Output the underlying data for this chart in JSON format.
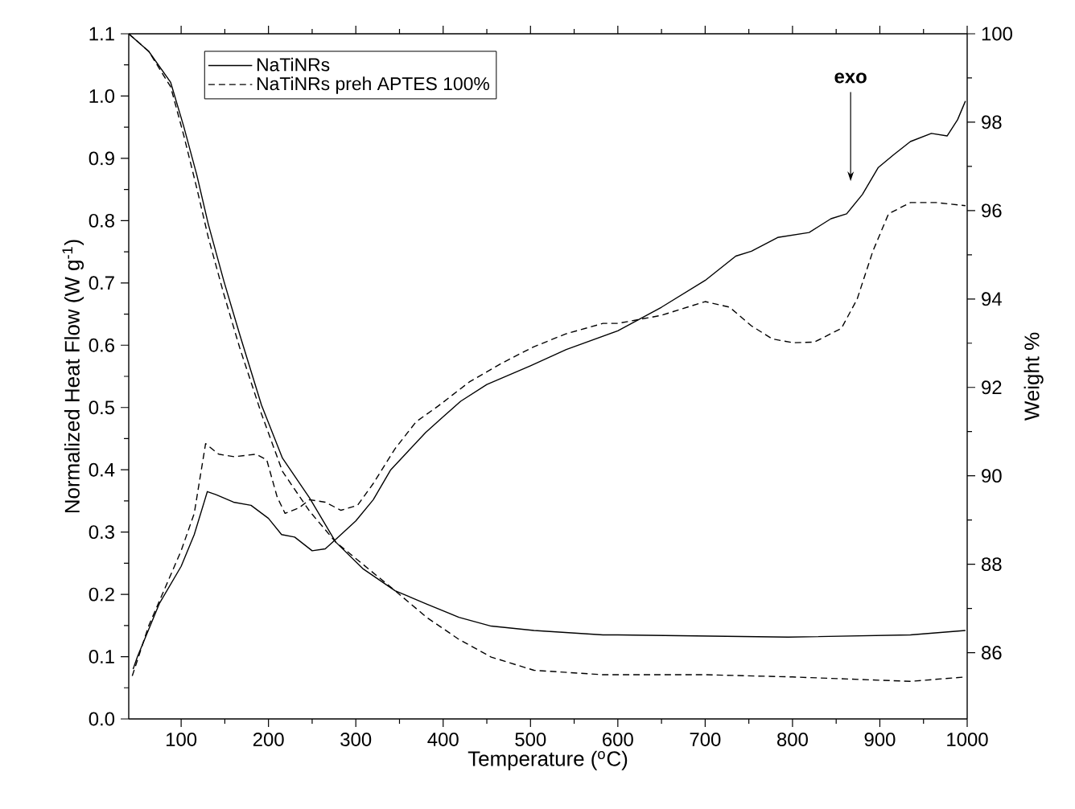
{
  "chart_data": {
    "type": "line",
    "xlabel": "Temperature ($^{o}$C)",
    "ylabel": "Normalized Heat Flow (W g$^{-1}$)",
    "y2label": "Weight %",
    "xlim": [
      40,
      1000
    ],
    "xticks": [
      100,
      200,
      300,
      400,
      500,
      600,
      700,
      800,
      900,
      1000
    ],
    "ylim": [
      0,
      1.1
    ],
    "yticks": [
      {
        "value": 0,
        "label": "0.0"
      },
      {
        "value": 0.1,
        "label": "0.1"
      },
      {
        "value": 0.2,
        "label": "0.2"
      },
      {
        "value": 0.3,
        "label": "0.3"
      },
      {
        "value": 0.4,
        "label": "0.4"
      },
      {
        "value": 0.5,
        "label": "0.5"
      },
      {
        "value": 0.6,
        "label": "0.6"
      },
      {
        "value": 0.7,
        "label": "0.7"
      },
      {
        "value": 0.8,
        "label": "0.8"
      },
      {
        "value": 0.9,
        "label": "0.9"
      },
      {
        "value": 1.0,
        "label": "1.0"
      },
      {
        "value": 1.1,
        "label": "1.1"
      }
    ],
    "y2lim": [
      84.5,
      100
    ],
    "y2ticks": [
      86,
      88,
      90,
      92,
      94,
      96,
      98,
      100
    ],
    "legend": "top left",
    "grid": false,
    "marker": "none",
    "annotations": [
      "exo"
    ],
    "series": [
      {
        "name": "NaTiNRs",
        "color": "#000000",
        "line_style": "solid",
        "x": [
          45,
          50,
          75,
          100,
          115,
          130,
          140,
          160,
          180,
          200,
          215,
          230,
          250,
          265,
          280,
          300,
          320,
          340,
          360,
          380,
          400,
          420,
          450,
          500,
          541,
          600,
          650,
          700,
          735,
          753,
          783,
          801,
          819,
          844,
          862,
          880,
          898,
          916,
          935,
          959,
          977,
          989,
          998
        ],
        "values": [
          0.08,
          0.1,
          0.185,
          0.245,
          0.296,
          0.365,
          0.36,
          0.348,
          0.343,
          0.322,
          0.296,
          0.292,
          0.27,
          0.273,
          0.292,
          0.318,
          0.352,
          0.4,
          0.43,
          0.46,
          0.485,
          0.51,
          0.537,
          0.567,
          0.593,
          0.623,
          0.661,
          0.704,
          0.743,
          0.751,
          0.773,
          0.777,
          0.781,
          0.803,
          0.811,
          0.842,
          0.885,
          0.906,
          0.927,
          0.94,
          0.936,
          0.962,
          0.992
        ]
      },
      {
        "name": "NaTiNRs preh APTES 100%",
        "color": "#000000",
        "line_style": "dashed",
        "x": [
          44,
          63,
          100,
          115,
          128,
          143,
          161,
          186,
          198,
          210,
          219,
          235,
          247,
          265,
          283,
          302,
          320,
          345,
          369,
          394,
          430,
          467,
          503,
          540,
          583,
          600,
          650,
          700,
          728,
          753,
          777,
          801,
          825,
          856,
          874,
          892,
          910,
          935,
          965,
          998
        ],
        "values": [
          0.069,
          0.15,
          0.27,
          0.33,
          0.442,
          0.425,
          0.421,
          0.425,
          0.416,
          0.356,
          0.33,
          0.339,
          0.352,
          0.348,
          0.335,
          0.343,
          0.378,
          0.434,
          0.477,
          0.502,
          0.541,
          0.571,
          0.597,
          0.618,
          0.635,
          0.635,
          0.648,
          0.67,
          0.661,
          0.631,
          0.61,
          0.604,
          0.605,
          0.627,
          0.674,
          0.751,
          0.811,
          0.829,
          0.829,
          0.824
        ]
      },
      {
        "axis": "y2",
        "color": "#000000",
        "line_style": "solid",
        "x": [
          40,
          63,
          88,
          103,
          118,
          131,
          149,
          167,
          192,
          216,
          247,
          277,
          308,
          345,
          381,
          418,
          455,
          504,
          583,
          600,
          795,
          935,
          998
        ],
        "values": [
          100,
          99.6,
          98.9,
          97.9,
          96.8,
          95.7,
          94.4,
          93.2,
          91.6,
          90.4,
          89.5,
          88.5,
          87.9,
          87.4,
          87.1,
          86.8,
          86.6,
          86.5,
          86.4,
          86.4,
          86.35,
          86.4,
          86.5
        ]
      },
      {
        "axis": "y2",
        "color": "#000000",
        "line_style": "dashed",
        "x": [
          40,
          63,
          88,
          103,
          118,
          131,
          149,
          167,
          192,
          216,
          247,
          277,
          308,
          345,
          381,
          418,
          455,
          504,
          583,
          700,
          800,
          935,
          998
        ],
        "values": [
          100,
          99.6,
          98.8,
          97.7,
          96.5,
          95.4,
          94.1,
          92.9,
          91.4,
          90.1,
          89.2,
          88.5,
          88.0,
          87.4,
          86.8,
          86.3,
          85.9,
          85.6,
          85.5,
          85.5,
          85.45,
          85.35,
          85.45
        ]
      }
    ]
  }
}
